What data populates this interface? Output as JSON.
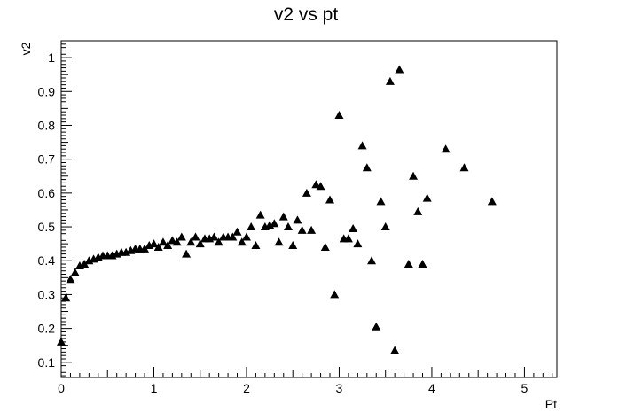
{
  "chart_data": {
    "type": "scatter",
    "title": "v2 vs pt",
    "xlabel": "Pt",
    "ylabel": "v2",
    "xlim": [
      0,
      5.35
    ],
    "ylim": [
      0.055,
      1.05
    ],
    "x_ticks": [
      "0",
      "1",
      "2",
      "3",
      "4",
      "5"
    ],
    "y_ticks": [
      "0.1",
      "0.2",
      "0.3",
      "0.4",
      "0.5",
      "0.6",
      "0.7",
      "0.8",
      "0.9",
      "1"
    ],
    "marker": "triangle",
    "grid": false,
    "series": [
      {
        "color": "#000000",
        "points": [
          [
            0.0,
            0.16
          ],
          [
            0.05,
            0.29
          ],
          [
            0.1,
            0.345
          ],
          [
            0.15,
            0.365
          ],
          [
            0.2,
            0.385
          ],
          [
            0.25,
            0.39
          ],
          [
            0.3,
            0.4
          ],
          [
            0.35,
            0.405
          ],
          [
            0.4,
            0.41
          ],
          [
            0.45,
            0.415
          ],
          [
            0.5,
            0.415
          ],
          [
            0.55,
            0.415
          ],
          [
            0.6,
            0.42
          ],
          [
            0.65,
            0.425
          ],
          [
            0.7,
            0.425
          ],
          [
            0.75,
            0.43
          ],
          [
            0.8,
            0.435
          ],
          [
            0.85,
            0.435
          ],
          [
            0.9,
            0.435
          ],
          [
            0.95,
            0.445
          ],
          [
            1.0,
            0.45
          ],
          [
            1.05,
            0.44
          ],
          [
            1.1,
            0.455
          ],
          [
            1.15,
            0.445
          ],
          [
            1.2,
            0.46
          ],
          [
            1.25,
            0.455
          ],
          [
            1.3,
            0.47
          ],
          [
            1.35,
            0.42
          ],
          [
            1.4,
            0.455
          ],
          [
            1.45,
            0.47
          ],
          [
            1.5,
            0.45
          ],
          [
            1.55,
            0.465
          ],
          [
            1.6,
            0.465
          ],
          [
            1.65,
            0.47
          ],
          [
            1.7,
            0.455
          ],
          [
            1.75,
            0.47
          ],
          [
            1.8,
            0.47
          ],
          [
            1.85,
            0.47
          ],
          [
            1.9,
            0.485
          ],
          [
            1.95,
            0.455
          ],
          [
            2.0,
            0.47
          ],
          [
            2.05,
            0.5
          ],
          [
            2.1,
            0.445
          ],
          [
            2.15,
            0.535
          ],
          [
            2.2,
            0.5
          ],
          [
            2.25,
            0.505
          ],
          [
            2.3,
            0.51
          ],
          [
            2.35,
            0.455
          ],
          [
            2.4,
            0.53
          ],
          [
            2.45,
            0.5
          ],
          [
            2.5,
            0.445
          ],
          [
            2.55,
            0.52
          ],
          [
            2.6,
            0.49
          ],
          [
            2.65,
            0.6
          ],
          [
            2.7,
            0.49
          ],
          [
            2.75,
            0.625
          ],
          [
            2.8,
            0.62
          ],
          [
            2.85,
            0.44
          ],
          [
            2.9,
            0.58
          ],
          [
            2.95,
            0.3
          ],
          [
            3.0,
            0.83
          ],
          [
            3.05,
            0.465
          ],
          [
            3.1,
            0.465
          ],
          [
            3.15,
            0.495
          ],
          [
            3.2,
            0.45
          ],
          [
            3.25,
            0.74
          ],
          [
            3.3,
            0.675
          ],
          [
            3.35,
            0.4
          ],
          [
            3.4,
            0.205
          ],
          [
            3.45,
            0.575
          ],
          [
            3.5,
            0.5
          ],
          [
            3.55,
            0.93
          ],
          [
            3.6,
            0.135
          ],
          [
            3.65,
            0.965
          ],
          [
            3.75,
            0.39
          ],
          [
            3.8,
            0.65
          ],
          [
            3.85,
            0.545
          ],
          [
            3.9,
            0.39
          ],
          [
            3.95,
            0.585
          ],
          [
            4.15,
            0.73
          ],
          [
            4.35,
            0.675
          ],
          [
            4.65,
            0.575
          ]
        ]
      }
    ]
  }
}
